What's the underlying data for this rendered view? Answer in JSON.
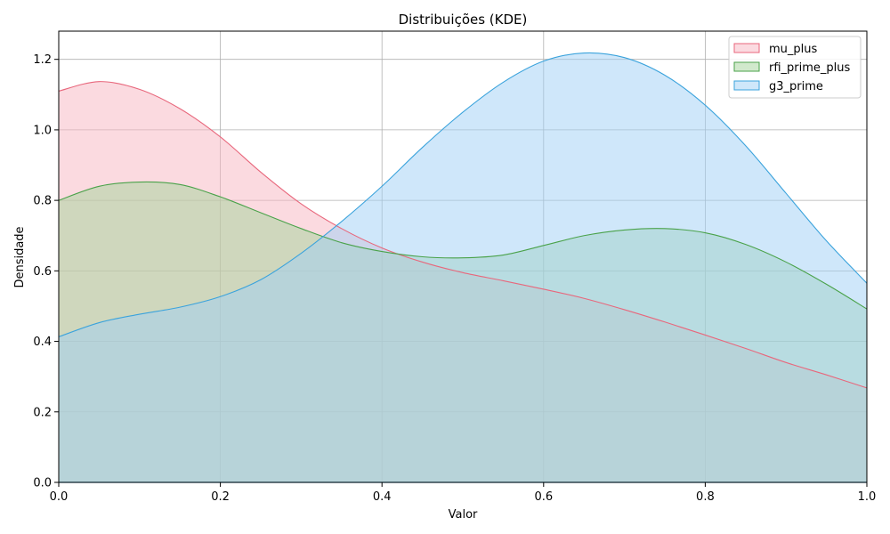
{
  "chart_data": {
    "type": "area",
    "title": "Distribuições (KDE)",
    "xlabel": "Valor",
    "ylabel": "Densidade",
    "xlim": [
      0.0,
      1.0
    ],
    "ylim": [
      0.0,
      1.28
    ],
    "x_ticks": [
      0.0,
      0.2,
      0.4,
      0.6,
      0.8,
      1.0
    ],
    "x_tick_labels": [
      "0.0",
      "0.2",
      "0.4",
      "0.6",
      "0.8",
      "1.0"
    ],
    "y_ticks": [
      0.0,
      0.2,
      0.4,
      0.6,
      0.8,
      1.0,
      1.2
    ],
    "y_tick_labels": [
      "0.0",
      "0.2",
      "0.4",
      "0.6",
      "0.8",
      "1.0",
      "1.2"
    ],
    "grid": true,
    "legend_position": "top-right",
    "x": [
      0.0,
      0.05,
      0.1,
      0.15,
      0.2,
      0.25,
      0.3,
      0.35,
      0.4,
      0.45,
      0.5,
      0.55,
      0.6,
      0.65,
      0.7,
      0.75,
      0.8,
      0.85,
      0.9,
      0.95,
      1.0
    ],
    "series": [
      {
        "name": "mu_plus",
        "color": "#e8677c",
        "fill": "#f7b6c2",
        "values": [
          1.11,
          1.137,
          1.115,
          1.06,
          0.98,
          0.88,
          0.79,
          0.72,
          0.665,
          0.625,
          0.595,
          0.572,
          0.548,
          0.522,
          0.49,
          0.455,
          0.418,
          0.38,
          0.34,
          0.305,
          0.268
        ]
      },
      {
        "name": "rfi_prime_plus",
        "color": "#4aa24a",
        "fill": "#a3d39a",
        "values": [
          0.8,
          0.84,
          0.852,
          0.845,
          0.81,
          0.765,
          0.72,
          0.68,
          0.655,
          0.64,
          0.637,
          0.645,
          0.672,
          0.7,
          0.716,
          0.72,
          0.708,
          0.675,
          0.625,
          0.562,
          0.492
        ]
      },
      {
        "name": "g3_prime",
        "color": "#3ba3dc",
        "fill": "#9fd0f5",
        "values": [
          0.413,
          0.453,
          0.477,
          0.497,
          0.527,
          0.575,
          0.65,
          0.74,
          0.84,
          0.95,
          1.05,
          1.135,
          1.195,
          1.218,
          1.205,
          1.155,
          1.07,
          0.955,
          0.82,
          0.685,
          0.565
        ]
      }
    ]
  }
}
